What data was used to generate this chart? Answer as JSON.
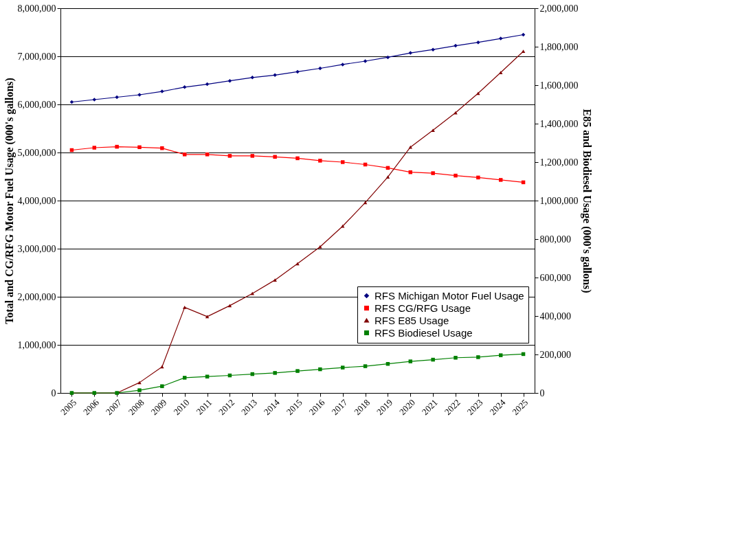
{
  "chart_data": {
    "type": "line",
    "ylabel": "Total and CG/RFG Motor Fuel Usage  (000's gallons)",
    "y2label": "E85 and Biodiesel Usage (000's gallons)",
    "categories": [
      "2005",
      "2006",
      "2007",
      "2008",
      "2009",
      "2010",
      "2011",
      "2012",
      "2013",
      "2014",
      "2015",
      "2016",
      "2017",
      "2018",
      "2019",
      "2020",
      "2021",
      "2022",
      "2023",
      "2024",
      "2025"
    ],
    "ylim": [
      0,
      8000000
    ],
    "yticks": [
      0,
      {
        "value": 1000000,
        "label": "1,000,000"
      },
      {
        "value": 2000000,
        "label": "2,000,000"
      },
      {
        "value": 3000000,
        "label": "3,000,000"
      },
      {
        "value": 4000000,
        "label": "4,000,000"
      },
      {
        "value": 5000000,
        "label": "5,000,000"
      },
      {
        "value": 6000000,
        "label": "6,000,000"
      },
      {
        "value": 7000000,
        "label": "7,000,000"
      },
      {
        "value": 8000000,
        "label": "8,000,000"
      }
    ],
    "y2lim": [
      0,
      2000000
    ],
    "y2ticks": [
      0,
      {
        "value": 200000,
        "label": "200,000"
      },
      {
        "value": 400000,
        "label": "400,000"
      },
      {
        "value": 600000,
        "label": "600,000"
      },
      {
        "value": 800000,
        "label": "800,000"
      },
      {
        "value": 1000000,
        "label": "1,000,000"
      },
      {
        "value": 1200000,
        "label": "1,200,000"
      },
      {
        "value": 1400000,
        "label": "1,400,000"
      },
      {
        "value": 1600000,
        "label": "1,600,000"
      },
      {
        "value": 1800000,
        "label": "1,800,000"
      },
      {
        "value": 2000000,
        "label": "2,000,000"
      }
    ],
    "grid": "y",
    "legend": "bottom right",
    "series": [
      {
        "name": "RFS Michigan Motor Fuel Usage",
        "color": "#000080",
        "marker": "diamond",
        "values": [
          6050000,
          6100000,
          6150000,
          6200000,
          6270000,
          6360000,
          6420000,
          6490000,
          6560000,
          6610000,
          6680000,
          6750000,
          6830000,
          6900000,
          6980000,
          7070000,
          7140000,
          7220000,
          7290000,
          7370000,
          7450000
        ]
      },
      {
        "name": "RFS CG/RFG Usage",
        "color": "#ff0000",
        "marker": "square",
        "values": [
          5050000,
          5100000,
          5120000,
          5110000,
          5090000,
          4960000,
          4960000,
          4930000,
          4930000,
          4910000,
          4880000,
          4830000,
          4800000,
          4750000,
          4680000,
          4590000,
          4570000,
          4520000,
          4480000,
          4430000,
          4380000
        ]
      },
      {
        "name": "RFS E85 Usage",
        "color": "#800000",
        "marker": "triangle",
        "axis": "y2",
        "values": [
          0,
          0,
          0,
          54000,
          136000,
          445000,
          397000,
          454000,
          517000,
          587000,
          672000,
          760000,
          867000,
          990000,
          1123000,
          1278000,
          1366000,
          1457000,
          1558000,
          1666000,
          1776000
        ]
      },
      {
        "name": "RFS Biodiesel Usage",
        "color": "#008000",
        "marker": "square",
        "axis": "y2",
        "values": [
          0,
          0,
          0,
          14000,
          35000,
          79000,
          85000,
          91000,
          98000,
          104000,
          114000,
          123000,
          132000,
          139000,
          151000,
          164000,
          173000,
          183000,
          186000,
          196000,
          202000
        ]
      }
    ]
  }
}
